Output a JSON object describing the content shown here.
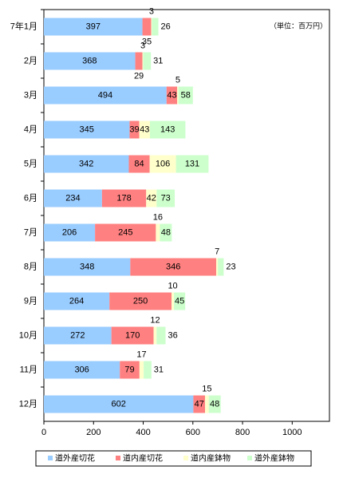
{
  "chart_data": {
    "type": "stacked_bar_horizontal",
    "unit_note": "（単位：百万円）",
    "categories": [
      "7年1月",
      "2月",
      "3月",
      "4月",
      "5月",
      "6月",
      "7月",
      "8月",
      "9月",
      "10月",
      "11月",
      "12月"
    ],
    "series": [
      {
        "name": "道外産切花",
        "color": "#99ccff",
        "values": [
          397,
          368,
          494,
          345,
          342,
          234,
          206,
          348,
          264,
          272,
          306,
          602
        ]
      },
      {
        "name": "道内産切花",
        "color": "#ff8080",
        "values": [
          35,
          29,
          43,
          39,
          84,
          178,
          245,
          346,
          250,
          170,
          79,
          47
        ]
      },
      {
        "name": "道内産鉢物",
        "color": "#ffffcc",
        "values": [
          3,
          3,
          5,
          43,
          106,
          42,
          16,
          7,
          10,
          12,
          17,
          15
        ]
      },
      {
        "name": "道外産鉢物",
        "color": "#ccffcc",
        "values": [
          26,
          31,
          58,
          143,
          131,
          73,
          48,
          23,
          45,
          36,
          31,
          48
        ]
      }
    ],
    "xlim": [
      0,
      1150
    ],
    "xticks": [
      0,
      200,
      400,
      600,
      800,
      1000
    ]
  }
}
